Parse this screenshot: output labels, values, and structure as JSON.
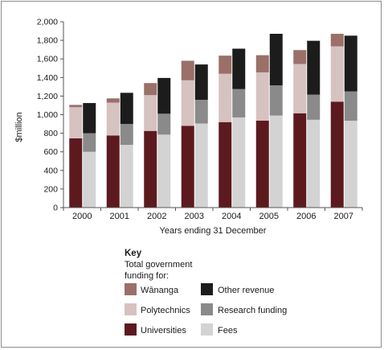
{
  "chart_data": {
    "type": "bar",
    "layout": "stacked, paired bars per year",
    "categories": [
      "2000",
      "2001",
      "2002",
      "2003",
      "2004",
      "2005",
      "2006",
      "2007"
    ],
    "xlabel": "Years ending 31 December",
    "ylabel": "$million",
    "ylim": [
      0,
      2000
    ],
    "yticks": [
      0,
      200,
      400,
      600,
      800,
      1000,
      1200,
      1400,
      1600,
      1800,
      2000
    ],
    "ytick_labels": [
      "0",
      "200",
      "400",
      "600",
      "800",
      "1,000",
      "1,200",
      "1,400",
      "1,600",
      "1,800",
      "2,000"
    ],
    "grid": false,
    "stacks": [
      {
        "stack": "Total government funding",
        "series": [
          {
            "name": "Universities",
            "color": "#5c1a1f",
            "values": [
              745,
              775,
              825,
              880,
              920,
              935,
              1015,
              1140
            ]
          },
          {
            "name": "Polytechnics",
            "color": "#d6c2c0",
            "values": [
              335,
              355,
              385,
              490,
              520,
              520,
              530,
              595
            ]
          },
          {
            "name": "Wānanga",
            "color": "#9a7068",
            "values": [
              25,
              45,
              130,
              210,
              195,
              185,
              150,
              135
            ]
          }
        ]
      },
      {
        "stack": "Other sources",
        "series": [
          {
            "name": "Fees",
            "color": "#d3d3d3",
            "values": [
              600,
              675,
              785,
              905,
              970,
              990,
              945,
              935
            ]
          },
          {
            "name": "Research funding",
            "color": "#8a8a8a",
            "values": [
              200,
              225,
              225,
              255,
              305,
              325,
              270,
              315
            ]
          },
          {
            "name": "Other revenue",
            "color": "#1c1c1c",
            "values": [
              325,
              335,
              385,
              380,
              435,
              555,
              580,
              600
            ]
          }
        ]
      }
    ]
  },
  "legend": {
    "title": "Key",
    "subtitle_line1": "Total government",
    "subtitle_line2": "funding for:",
    "items": [
      {
        "label": "Wānanga",
        "color": "#9a7068"
      },
      {
        "label": "Other revenue",
        "color": "#1c1c1c"
      },
      {
        "label": "Polytechnics",
        "color": "#d6c2c0"
      },
      {
        "label": "Research funding",
        "color": "#8a8a8a"
      },
      {
        "label": "Universities",
        "color": "#5c1a1f"
      },
      {
        "label": "Fees",
        "color": "#d3d3d3"
      }
    ]
  }
}
